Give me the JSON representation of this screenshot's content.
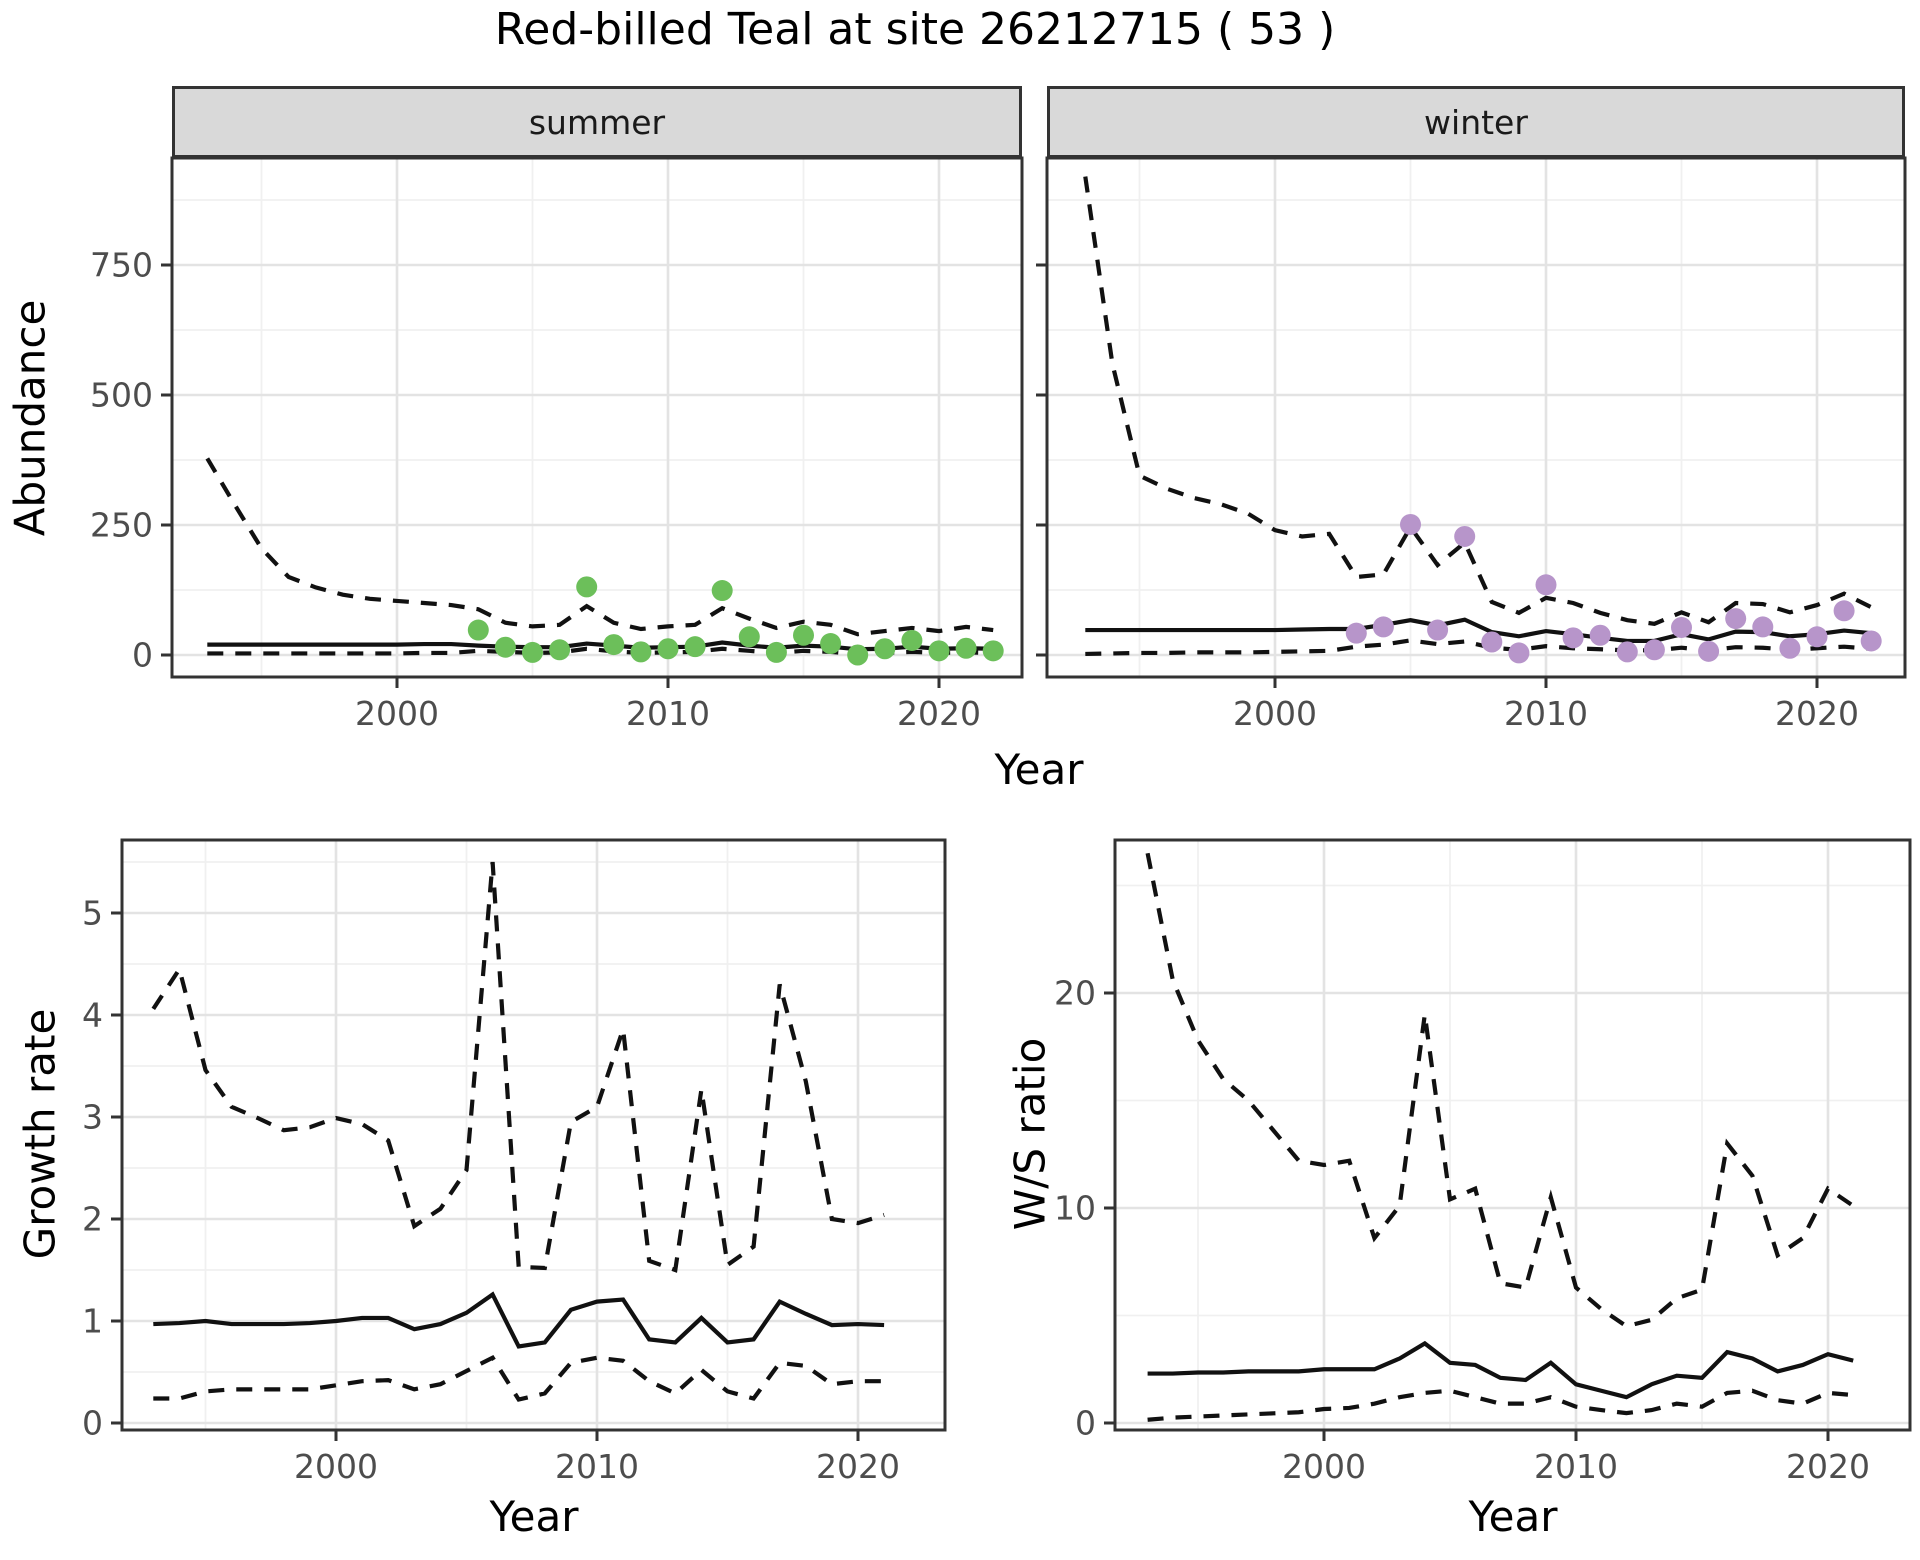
{
  "page": {
    "title": "Red-billed Teal at site 26212715 ( 53 )"
  },
  "colors": {
    "summer_point": "#6CBF5A",
    "winter_point": "#B795CA",
    "line": "#111111",
    "strip_bg": "#D9D9D9",
    "grid_major": "#E3E3E3",
    "grid_minor": "#F0F0F0",
    "tick_text": "#4D4D4D",
    "panel_border": "#333333"
  },
  "chart_data": [
    {
      "id": "abundance_summer",
      "type": "line",
      "facet": "summer",
      "xlabel": "Year",
      "ylabel": "Abundance",
      "ylim": [
        0,
        950
      ],
      "yticks": [
        0,
        250,
        500,
        750
      ],
      "xticks": [
        2000,
        2010,
        2020
      ],
      "grid": true,
      "legend": "none",
      "x": [
        1993,
        1994,
        1995,
        1996,
        1997,
        1998,
        1999,
        2000,
        2001,
        2002,
        2003,
        2004,
        2005,
        2006,
        2007,
        2008,
        2009,
        2010,
        2011,
        2012,
        2013,
        2014,
        2015,
        2016,
        2017,
        2018,
        2019,
        2020,
        2021,
        2022
      ],
      "series": [
        {
          "name": "upper_95CI",
          "style": "dashed",
          "values": [
            378,
            290,
            205,
            150,
            130,
            116,
            108,
            104,
            100,
            96,
            88,
            62,
            55,
            58,
            94,
            62,
            50,
            55,
            58,
            90,
            70,
            52,
            64,
            58,
            40,
            46,
            52,
            46,
            54,
            48
          ]
        },
        {
          "name": "median",
          "style": "solid",
          "values": [
            20,
            20,
            20,
            20,
            20,
            20,
            20,
            20,
            21,
            21,
            18,
            16,
            15,
            15,
            22,
            18,
            14,
            15,
            16,
            24,
            18,
            14,
            18,
            16,
            11,
            12,
            16,
            12,
            13,
            12
          ]
        },
        {
          "name": "lower_95CI",
          "style": "dashed",
          "values": [
            3,
            3,
            3,
            3,
            3,
            3,
            3,
            3,
            4,
            4,
            8,
            6,
            4,
            5,
            12,
            7,
            4,
            5,
            6,
            12,
            8,
            4,
            8,
            6,
            2,
            4,
            6,
            4,
            5,
            4
          ]
        }
      ],
      "points": {
        "name": "observed_summer_counts",
        "x": [
          2003,
          2004,
          2005,
          2006,
          2007,
          2008,
          2009,
          2010,
          2011,
          2012,
          2013,
          2014,
          2015,
          2016,
          2017,
          2018,
          2019,
          2020,
          2021,
          2022
        ],
        "y": [
          48,
          15,
          5,
          10,
          131,
          20,
          6,
          12,
          16,
          124,
          35,
          5,
          38,
          22,
          0,
          12,
          28,
          8,
          13,
          8
        ]
      }
    },
    {
      "id": "abundance_winter",
      "type": "line",
      "facet": "winter",
      "xlabel": "Year",
      "ylabel": "Abundance",
      "ylim": [
        0,
        950
      ],
      "yticks": [
        0,
        250,
        500,
        750
      ],
      "xticks": [
        2000,
        2010,
        2020
      ],
      "grid": true,
      "legend": "none",
      "x": [
        1993,
        1994,
        1995,
        1996,
        1997,
        1998,
        1999,
        2000,
        2001,
        2002,
        2003,
        2004,
        2005,
        2006,
        2007,
        2008,
        2009,
        2010,
        2011,
        2012,
        2013,
        2014,
        2015,
        2016,
        2017,
        2018,
        2019,
        2020,
        2021,
        2022
      ],
      "series": [
        {
          "name": "upper_95CI",
          "style": "dashed",
          "values": [
            920,
            560,
            345,
            320,
            302,
            290,
            272,
            240,
            228,
            233,
            150,
            155,
            246,
            173,
            216,
            102,
            81,
            110,
            100,
            81,
            67,
            60,
            82,
            63,
            100,
            98,
            82,
            96,
            118,
            92
          ]
        },
        {
          "name": "median",
          "style": "solid",
          "values": [
            48,
            48,
            48,
            48,
            48,
            48,
            48,
            48,
            49,
            50,
            50,
            58,
            67,
            57,
            68,
            44,
            36,
            46,
            40,
            33,
            27,
            27,
            40,
            30,
            45,
            44,
            36,
            40,
            47,
            42
          ]
        },
        {
          "name": "lower_95CI",
          "style": "dashed",
          "values": [
            2,
            3,
            4,
            4,
            5,
            5,
            5,
            6,
            7,
            8,
            16,
            20,
            28,
            21,
            26,
            14,
            10,
            17,
            13,
            11,
            9,
            9,
            14,
            9,
            15,
            14,
            10,
            13,
            16,
            12
          ]
        }
      ],
      "points": {
        "name": "observed_winter_counts",
        "x": [
          2003,
          2004,
          2005,
          2006,
          2007,
          2008,
          2009,
          2010,
          2011,
          2012,
          2013,
          2014,
          2015,
          2016,
          2017,
          2018,
          2019,
          2020,
          2021,
          2022
        ],
        "y": [
          42,
          54,
          251,
          48,
          228,
          25,
          4,
          135,
          33,
          38,
          6,
          10,
          53,
          7,
          70,
          54,
          13,
          35,
          85,
          27
        ]
      }
    },
    {
      "id": "growth_rate",
      "type": "line",
      "xlabel": "Year",
      "ylabel": "Growth rate",
      "ylim": [
        0,
        5.7
      ],
      "yticks": [
        0,
        1,
        2,
        3,
        4,
        5
      ],
      "xticks": [
        2000,
        2010,
        2020
      ],
      "grid": true,
      "legend": "none",
      "x": [
        1993,
        1994,
        1995,
        1996,
        1997,
        1998,
        1999,
        2000,
        2001,
        2002,
        2003,
        2004,
        2005,
        2006,
        2007,
        2008,
        2009,
        2010,
        2011,
        2012,
        2013,
        2014,
        2015,
        2016,
        2017,
        2018,
        2019,
        2020,
        2021
      ],
      "series": [
        {
          "name": "upper_95CI",
          "style": "dashed",
          "values": [
            4.06,
            4.45,
            3.46,
            3.1,
            2.99,
            2.87,
            2.9,
            2.99,
            2.93,
            2.77,
            1.93,
            2.1,
            2.48,
            5.5,
            1.53,
            1.52,
            2.95,
            3.1,
            3.86,
            1.59,
            1.5,
            3.27,
            1.55,
            1.73,
            4.3,
            3.35,
            2.0,
            1.96,
            2.04
          ]
        },
        {
          "name": "median",
          "style": "solid",
          "values": [
            0.97,
            0.98,
            1.0,
            0.97,
            0.97,
            0.97,
            0.98,
            1.0,
            1.03,
            1.03,
            0.92,
            0.97,
            1.08,
            1.26,
            0.75,
            0.79,
            1.11,
            1.19,
            1.21,
            0.82,
            0.79,
            1.03,
            0.79,
            0.82,
            1.19,
            1.07,
            0.96,
            0.97,
            0.96
          ]
        },
        {
          "name": "lower_95CI",
          "style": "dashed",
          "values": [
            0.24,
            0.24,
            0.31,
            0.33,
            0.33,
            0.33,
            0.33,
            0.37,
            0.41,
            0.42,
            0.33,
            0.38,
            0.51,
            0.64,
            0.23,
            0.29,
            0.59,
            0.64,
            0.61,
            0.41,
            0.29,
            0.52,
            0.31,
            0.24,
            0.59,
            0.56,
            0.38,
            0.41,
            0.41
          ]
        }
      ]
    },
    {
      "id": "ws_ratio",
      "type": "line",
      "xlabel": "Year",
      "ylabel": "W/S ratio",
      "ylim": [
        0,
        27
      ],
      "yticks": [
        0,
        10,
        20
      ],
      "xticks": [
        2000,
        2010,
        2020
      ],
      "grid": true,
      "legend": "none",
      "x": [
        1993,
        1994,
        1995,
        1996,
        1997,
        1998,
        1999,
        2000,
        2001,
        2002,
        2003,
        2004,
        2005,
        2006,
        2007,
        2008,
        2009,
        2010,
        2011,
        2012,
        2013,
        2014,
        2015,
        2016,
        2017,
        2018,
        2019,
        2020,
        2021
      ],
      "series": [
        {
          "name": "upper_95CI",
          "style": "dashed",
          "values": [
            26.5,
            20.6,
            17.8,
            16.0,
            15.0,
            13.6,
            12.2,
            12.0,
            12.2,
            8.6,
            10.1,
            19.0,
            10.4,
            10.9,
            6.5,
            6.3,
            10.5,
            6.3,
            5.3,
            4.5,
            4.8,
            5.8,
            6.2,
            13.0,
            11.5,
            7.8,
            8.6,
            10.9,
            10.1
          ]
        },
        {
          "name": "median",
          "style": "solid",
          "values": [
            2.3,
            2.3,
            2.35,
            2.35,
            2.4,
            2.4,
            2.4,
            2.5,
            2.5,
            2.5,
            3.0,
            3.7,
            2.8,
            2.7,
            2.1,
            2.0,
            2.8,
            1.8,
            1.5,
            1.2,
            1.8,
            2.2,
            2.1,
            3.3,
            3.0,
            2.4,
            2.7,
            3.2,
            2.9
          ]
        },
        {
          "name": "lower_95CI",
          "style": "dashed",
          "values": [
            0.15,
            0.25,
            0.3,
            0.35,
            0.4,
            0.45,
            0.5,
            0.65,
            0.7,
            0.9,
            1.2,
            1.4,
            1.5,
            1.2,
            0.9,
            0.9,
            1.2,
            0.76,
            0.6,
            0.46,
            0.6,
            0.9,
            0.76,
            1.4,
            1.5,
            1.06,
            0.9,
            1.4,
            1.3
          ]
        }
      ]
    }
  ]
}
